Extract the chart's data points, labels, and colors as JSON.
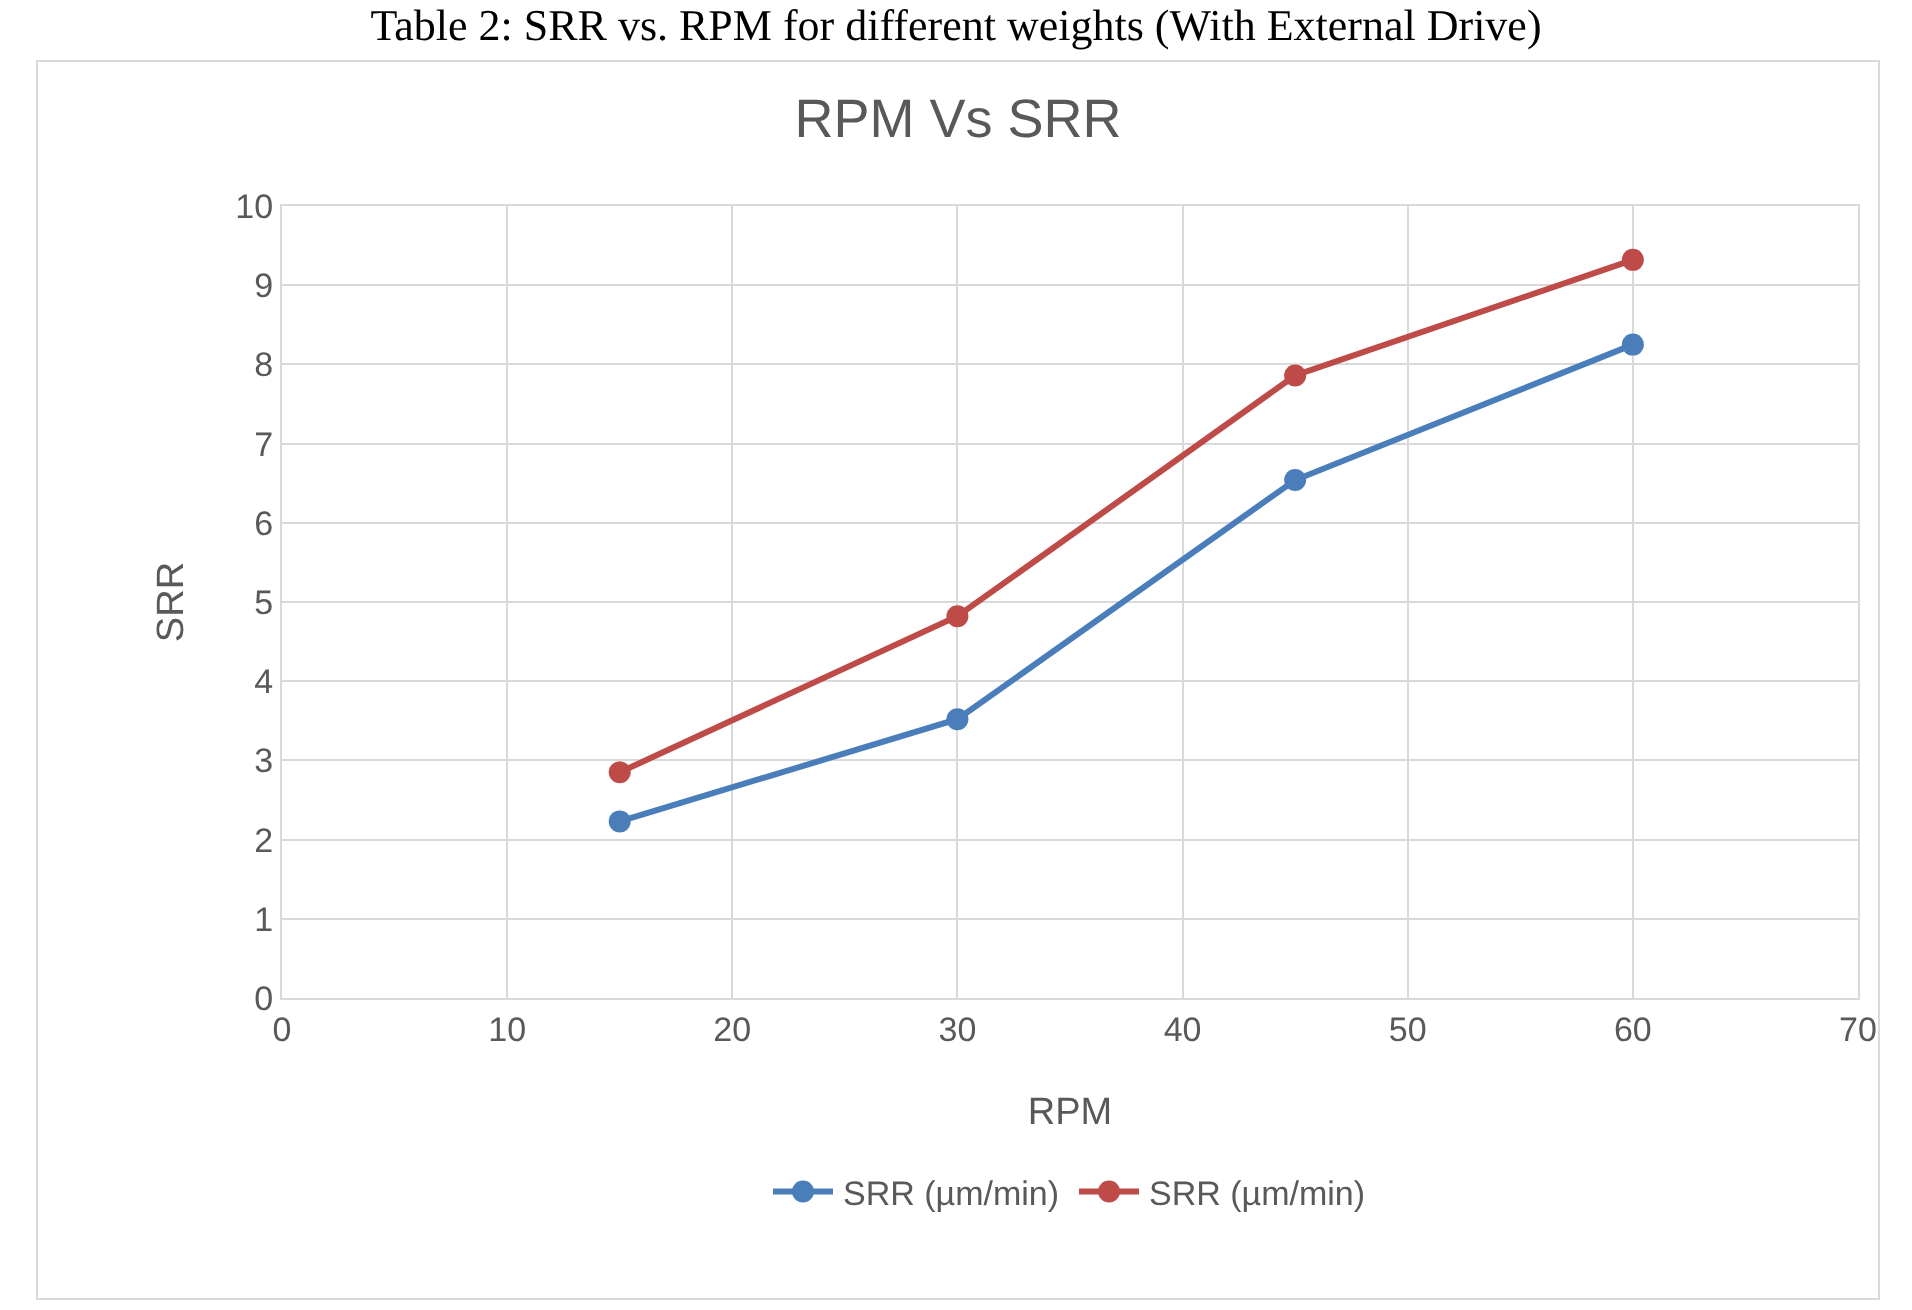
{
  "chart_data": {
    "type": "line",
    "title": "RPM Vs SRR",
    "xlabel": "RPM",
    "ylabel": "SRR",
    "annotations": [
      "Table 2: SRR vs. RPM for different weights (With External Drive)"
    ],
    "x": [
      15,
      30,
      45,
      60
    ],
    "series": [
      {
        "name": "SRR (µm/min)",
        "color": "#4a7ebb",
        "values": [
          2.23,
          3.52,
          6.54,
          8.25
        ]
      },
      {
        "name": "SRR (µm/min)",
        "color": "#be4b48",
        "values": [
          2.85,
          4.82,
          7.86,
          9.32
        ]
      }
    ],
    "xlim": [
      0,
      70
    ],
    "xticks": [
      0,
      10,
      20,
      30,
      40,
      50,
      60,
      70
    ],
    "ylim": [
      0,
      10
    ],
    "yticks": [
      0,
      1,
      2,
      3,
      4,
      5,
      6,
      7,
      8,
      9,
      10
    ],
    "grid": true,
    "legend": "bottom",
    "marker": "circle",
    "line_style": "solid"
  }
}
